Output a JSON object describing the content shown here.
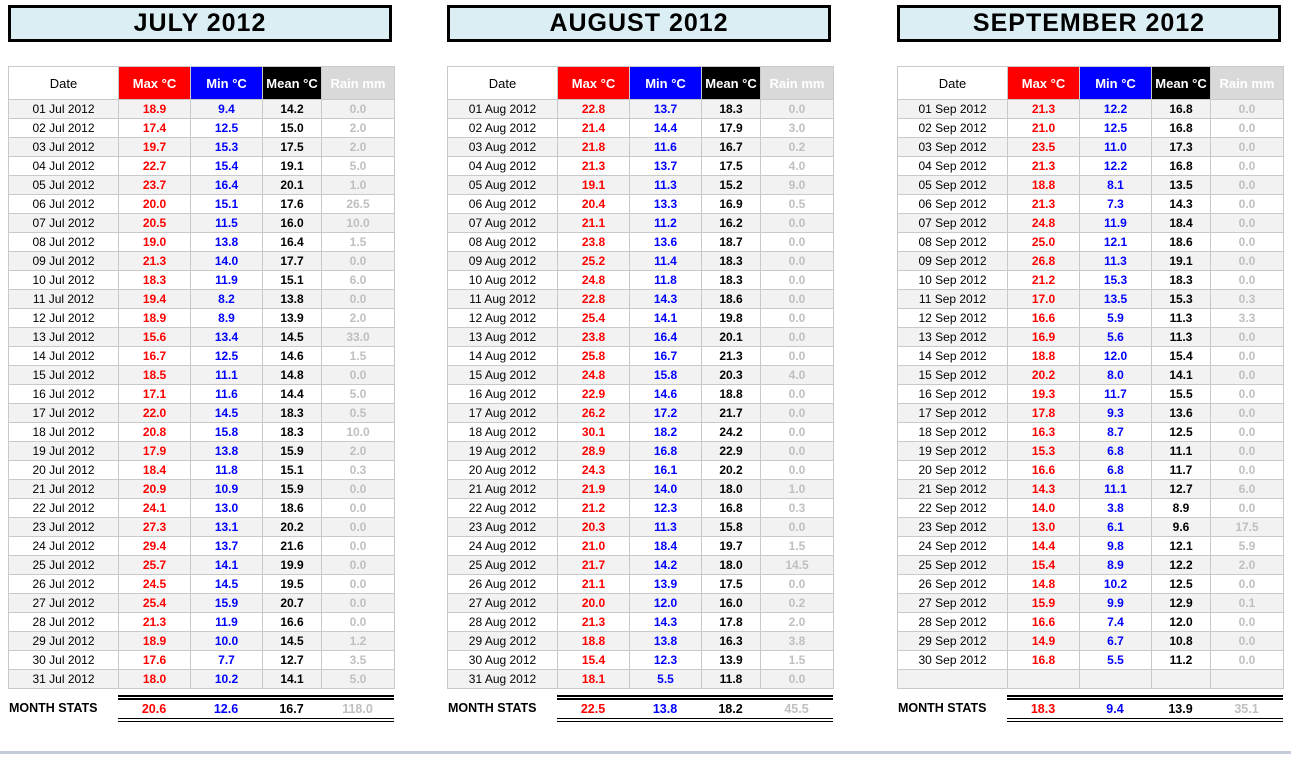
{
  "columns": [
    "Date",
    "Max °C",
    "Min °C",
    "Mean °C",
    "Rain mm"
  ],
  "labels": {
    "month_stats": "MONTH STATS"
  },
  "colors": {
    "title_bg": "#daeef3",
    "max_header_bg": "#ff0000",
    "min_header_bg": "#0000ff",
    "mean_header_bg": "#000000",
    "rain_header_bg": "#d9d9d9",
    "shaded_row_bg": "#f2f2f2",
    "max_text": "#ff0000",
    "min_text": "#0000ff",
    "mean_text": "#000000",
    "rain_text": "#bfbfbf"
  },
  "months": [
    {
      "title": "JULY 2012",
      "empty_rows": 0,
      "rows": [
        {
          "date": "01 Jul 2012",
          "max": "18.9",
          "min": "9.4",
          "mean": "14.2",
          "rain": "0.0"
        },
        {
          "date": "02 Jul 2012",
          "max": "17.4",
          "min": "12.5",
          "mean": "15.0",
          "rain": "2.0"
        },
        {
          "date": "03 Jul 2012",
          "max": "19.7",
          "min": "15.3",
          "mean": "17.5",
          "rain": "2.0"
        },
        {
          "date": "04 Jul 2012",
          "max": "22.7",
          "min": "15.4",
          "mean": "19.1",
          "rain": "5.0"
        },
        {
          "date": "05 Jul 2012",
          "max": "23.7",
          "min": "16.4",
          "mean": "20.1",
          "rain": "1.0"
        },
        {
          "date": "06 Jul 2012",
          "max": "20.0",
          "min": "15.1",
          "mean": "17.6",
          "rain": "26.5"
        },
        {
          "date": "07 Jul 2012",
          "max": "20.5",
          "min": "11.5",
          "mean": "16.0",
          "rain": "10.0"
        },
        {
          "date": "08 Jul 2012",
          "max": "19.0",
          "min": "13.8",
          "mean": "16.4",
          "rain": "1.5"
        },
        {
          "date": "09 Jul 2012",
          "max": "21.3",
          "min": "14.0",
          "mean": "17.7",
          "rain": "0.0"
        },
        {
          "date": "10 Jul 2012",
          "max": "18.3",
          "min": "11.9",
          "mean": "15.1",
          "rain": "6.0"
        },
        {
          "date": "11 Jul 2012",
          "max": "19.4",
          "min": "8.2",
          "mean": "13.8",
          "rain": "0.0"
        },
        {
          "date": "12 Jul 2012",
          "max": "18.9",
          "min": "8.9",
          "mean": "13.9",
          "rain": "2.0"
        },
        {
          "date": "13 Jul 2012",
          "max": "15.6",
          "min": "13.4",
          "mean": "14.5",
          "rain": "33.0"
        },
        {
          "date": "14 Jul 2012",
          "max": "16.7",
          "min": "12.5",
          "mean": "14.6",
          "rain": "1.5"
        },
        {
          "date": "15 Jul 2012",
          "max": "18.5",
          "min": "11.1",
          "mean": "14.8",
          "rain": "0.0"
        },
        {
          "date": "16 Jul 2012",
          "max": "17.1",
          "min": "11.6",
          "mean": "14.4",
          "rain": "5.0"
        },
        {
          "date": "17 Jul 2012",
          "max": "22.0",
          "min": "14.5",
          "mean": "18.3",
          "rain": "0.5"
        },
        {
          "date": "18 Jul 2012",
          "max": "20.8",
          "min": "15.8",
          "mean": "18.3",
          "rain": "10.0"
        },
        {
          "date": "19 Jul 2012",
          "max": "17.9",
          "min": "13.8",
          "mean": "15.9",
          "rain": "2.0"
        },
        {
          "date": "20 Jul 2012",
          "max": "18.4",
          "min": "11.8",
          "mean": "15.1",
          "rain": "0.3"
        },
        {
          "date": "21 Jul 2012",
          "max": "20.9",
          "min": "10.9",
          "mean": "15.9",
          "rain": "0.0"
        },
        {
          "date": "22 Jul 2012",
          "max": "24.1",
          "min": "13.0",
          "mean": "18.6",
          "rain": "0.0"
        },
        {
          "date": "23 Jul 2012",
          "max": "27.3",
          "min": "13.1",
          "mean": "20.2",
          "rain": "0.0"
        },
        {
          "date": "24 Jul 2012",
          "max": "29.4",
          "min": "13.7",
          "mean": "21.6",
          "rain": "0.0"
        },
        {
          "date": "25 Jul 2012",
          "max": "25.7",
          "min": "14.1",
          "mean": "19.9",
          "rain": "0.0"
        },
        {
          "date": "26 Jul 2012",
          "max": "24.5",
          "min": "14.5",
          "mean": "19.5",
          "rain": "0.0"
        },
        {
          "date": "27 Jul 2012",
          "max": "25.4",
          "min": "15.9",
          "mean": "20.7",
          "rain": "0.0"
        },
        {
          "date": "28 Jul 2012",
          "max": "21.3",
          "min": "11.9",
          "mean": "16.6",
          "rain": "0.0"
        },
        {
          "date": "29 Jul 2012",
          "max": "18.9",
          "min": "10.0",
          "mean": "14.5",
          "rain": "1.2"
        },
        {
          "date": "30 Jul 2012",
          "max": "17.6",
          "min": "7.7",
          "mean": "12.7",
          "rain": "3.5"
        },
        {
          "date": "31 Jul 2012",
          "max": "18.0",
          "min": "10.2",
          "mean": "14.1",
          "rain": "5.0"
        }
      ],
      "stats": {
        "max": "20.6",
        "min": "12.6",
        "mean": "16.7",
        "rain": "118.0"
      }
    },
    {
      "title": "AUGUST 2012",
      "empty_rows": 0,
      "rows": [
        {
          "date": "01 Aug 2012",
          "max": "22.8",
          "min": "13.7",
          "mean": "18.3",
          "rain": "0.0"
        },
        {
          "date": "02 Aug 2012",
          "max": "21.4",
          "min": "14.4",
          "mean": "17.9",
          "rain": "3.0"
        },
        {
          "date": "03 Aug 2012",
          "max": "21.8",
          "min": "11.6",
          "mean": "16.7",
          "rain": "0.2"
        },
        {
          "date": "04 Aug 2012",
          "max": "21.3",
          "min": "13.7",
          "mean": "17.5",
          "rain": "4.0"
        },
        {
          "date": "05 Aug 2012",
          "max": "19.1",
          "min": "11.3",
          "mean": "15.2",
          "rain": "9.0"
        },
        {
          "date": "06 Aug 2012",
          "max": "20.4",
          "min": "13.3",
          "mean": "16.9",
          "rain": "0.5"
        },
        {
          "date": "07 Aug 2012",
          "max": "21.1",
          "min": "11.2",
          "mean": "16.2",
          "rain": "0.0"
        },
        {
          "date": "08 Aug 2012",
          "max": "23.8",
          "min": "13.6",
          "mean": "18.7",
          "rain": "0.0"
        },
        {
          "date": "09 Aug 2012",
          "max": "25.2",
          "min": "11.4",
          "mean": "18.3",
          "rain": "0.0"
        },
        {
          "date": "10 Aug 2012",
          "max": "24.8",
          "min": "11.8",
          "mean": "18.3",
          "rain": "0.0"
        },
        {
          "date": "11 Aug 2012",
          "max": "22.8",
          "min": "14.3",
          "mean": "18.6",
          "rain": "0.0"
        },
        {
          "date": "12 Aug 2012",
          "max": "25.4",
          "min": "14.1",
          "mean": "19.8",
          "rain": "0.0"
        },
        {
          "date": "13 Aug 2012",
          "max": "23.8",
          "min": "16.4",
          "mean": "20.1",
          "rain": "0.0"
        },
        {
          "date": "14 Aug 2012",
          "max": "25.8",
          "min": "16.7",
          "mean": "21.3",
          "rain": "0.0"
        },
        {
          "date": "15 Aug 2012",
          "max": "24.8",
          "min": "15.8",
          "mean": "20.3",
          "rain": "4.0"
        },
        {
          "date": "16 Aug 2012",
          "max": "22.9",
          "min": "14.6",
          "mean": "18.8",
          "rain": "0.0"
        },
        {
          "date": "17 Aug 2012",
          "max": "26.2",
          "min": "17.2",
          "mean": "21.7",
          "rain": "0.0"
        },
        {
          "date": "18 Aug 2012",
          "max": "30.1",
          "min": "18.2",
          "mean": "24.2",
          "rain": "0.0"
        },
        {
          "date": "19 Aug 2012",
          "max": "28.9",
          "min": "16.8",
          "mean": "22.9",
          "rain": "0.0"
        },
        {
          "date": "20 Aug 2012",
          "max": "24.3",
          "min": "16.1",
          "mean": "20.2",
          "rain": "0.0"
        },
        {
          "date": "21 Aug 2012",
          "max": "21.9",
          "min": "14.0",
          "mean": "18.0",
          "rain": "1.0"
        },
        {
          "date": "22 Aug 2012",
          "max": "21.2",
          "min": "12.3",
          "mean": "16.8",
          "rain": "0.3"
        },
        {
          "date": "23 Aug 2012",
          "max": "20.3",
          "min": "11.3",
          "mean": "15.8",
          "rain": "0.0"
        },
        {
          "date": "24 Aug 2012",
          "max": "21.0",
          "min": "18.4",
          "mean": "19.7",
          "rain": "1.5"
        },
        {
          "date": "25 Aug 2012",
          "max": "21.7",
          "min": "14.2",
          "mean": "18.0",
          "rain": "14.5"
        },
        {
          "date": "26 Aug 2012",
          "max": "21.1",
          "min": "13.9",
          "mean": "17.5",
          "rain": "0.0"
        },
        {
          "date": "27 Aug 2012",
          "max": "20.0",
          "min": "12.0",
          "mean": "16.0",
          "rain": "0.2"
        },
        {
          "date": "28 Aug 2012",
          "max": "21.3",
          "min": "14.3",
          "mean": "17.8",
          "rain": "2.0"
        },
        {
          "date": "29 Aug 2012",
          "max": "18.8",
          "min": "13.8",
          "mean": "16.3",
          "rain": "3.8"
        },
        {
          "date": "30 Aug 2012",
          "max": "15.4",
          "min": "12.3",
          "mean": "13.9",
          "rain": "1.5"
        },
        {
          "date": "31 Aug 2012",
          "max": "18.1",
          "min": "5.5",
          "mean": "11.8",
          "rain": "0.0"
        }
      ],
      "stats": {
        "max": "22.5",
        "min": "13.8",
        "mean": "18.2",
        "rain": "45.5"
      }
    },
    {
      "title": "SEPTEMBER 2012",
      "empty_rows": 1,
      "rows": [
        {
          "date": "01 Sep 2012",
          "max": "21.3",
          "min": "12.2",
          "mean": "16.8",
          "rain": "0.0"
        },
        {
          "date": "02 Sep 2012",
          "max": "21.0",
          "min": "12.5",
          "mean": "16.8",
          "rain": "0.0"
        },
        {
          "date": "03 Sep 2012",
          "max": "23.5",
          "min": "11.0",
          "mean": "17.3",
          "rain": "0.0"
        },
        {
          "date": "04 Sep 2012",
          "max": "21.3",
          "min": "12.2",
          "mean": "16.8",
          "rain": "0.0"
        },
        {
          "date": "05 Sep 2012",
          "max": "18.8",
          "min": "8.1",
          "mean": "13.5",
          "rain": "0.0"
        },
        {
          "date": "06 Sep 2012",
          "max": "21.3",
          "min": "7.3",
          "mean": "14.3",
          "rain": "0.0"
        },
        {
          "date": "07 Sep 2012",
          "max": "24.8",
          "min": "11.9",
          "mean": "18.4",
          "rain": "0.0"
        },
        {
          "date": "08 Sep 2012",
          "max": "25.0",
          "min": "12.1",
          "mean": "18.6",
          "rain": "0.0"
        },
        {
          "date": "09 Sep 2012",
          "max": "26.8",
          "min": "11.3",
          "mean": "19.1",
          "rain": "0.0"
        },
        {
          "date": "10 Sep 2012",
          "max": "21.2",
          "min": "15.3",
          "mean": "18.3",
          "rain": "0.0"
        },
        {
          "date": "11 Sep 2012",
          "max": "17.0",
          "min": "13.5",
          "mean": "15.3",
          "rain": "0.3"
        },
        {
          "date": "12 Sep 2012",
          "max": "16.6",
          "min": "5.9",
          "mean": "11.3",
          "rain": "3.3"
        },
        {
          "date": "13 Sep 2012",
          "max": "16.9",
          "min": "5.6",
          "mean": "11.3",
          "rain": "0.0"
        },
        {
          "date": "14 Sep 2012",
          "max": "18.8",
          "min": "12.0",
          "mean": "15.4",
          "rain": "0.0"
        },
        {
          "date": "15 Sep 2012",
          "max": "20.2",
          "min": "8.0",
          "mean": "14.1",
          "rain": "0.0"
        },
        {
          "date": "16 Sep 2012",
          "max": "19.3",
          "min": "11.7",
          "mean": "15.5",
          "rain": "0.0"
        },
        {
          "date": "17 Sep 2012",
          "max": "17.8",
          "min": "9.3",
          "mean": "13.6",
          "rain": "0.0"
        },
        {
          "date": "18 Sep 2012",
          "max": "16.3",
          "min": "8.7",
          "mean": "12.5",
          "rain": "0.0"
        },
        {
          "date": "19 Sep 2012",
          "max": "15.3",
          "min": "6.8",
          "mean": "11.1",
          "rain": "0.0"
        },
        {
          "date": "20 Sep 2012",
          "max": "16.6",
          "min": "6.8",
          "mean": "11.7",
          "rain": "0.0"
        },
        {
          "date": "21 Sep 2012",
          "max": "14.3",
          "min": "11.1",
          "mean": "12.7",
          "rain": "6.0"
        },
        {
          "date": "22 Sep 2012",
          "max": "14.0",
          "min": "3.8",
          "mean": "8.9",
          "rain": "0.0"
        },
        {
          "date": "23 Sep 2012",
          "max": "13.0",
          "min": "6.1",
          "mean": "9.6",
          "rain": "17.5"
        },
        {
          "date": "24 Sep 2012",
          "max": "14.4",
          "min": "9.8",
          "mean": "12.1",
          "rain": "5.9"
        },
        {
          "date": "25 Sep 2012",
          "max": "15.4",
          "min": "8.9",
          "mean": "12.2",
          "rain": "2.0"
        },
        {
          "date": "26 Sep 2012",
          "max": "14.8",
          "min": "10.2",
          "mean": "12.5",
          "rain": "0.0"
        },
        {
          "date": "27 Sep 2012",
          "max": "15.9",
          "min": "9.9",
          "mean": "12.9",
          "rain": "0.1"
        },
        {
          "date": "28 Sep 2012",
          "max": "16.6",
          "min": "7.4",
          "mean": "12.0",
          "rain": "0.0"
        },
        {
          "date": "29 Sep 2012",
          "max": "14.9",
          "min": "6.7",
          "mean": "10.8",
          "rain": "0.0"
        },
        {
          "date": "30 Sep 2012",
          "max": "16.8",
          "min": "5.5",
          "mean": "11.2",
          "rain": "0.0"
        }
      ],
      "stats": {
        "max": "18.3",
        "min": "9.4",
        "mean": "13.9",
        "rain": "35.1"
      }
    }
  ]
}
